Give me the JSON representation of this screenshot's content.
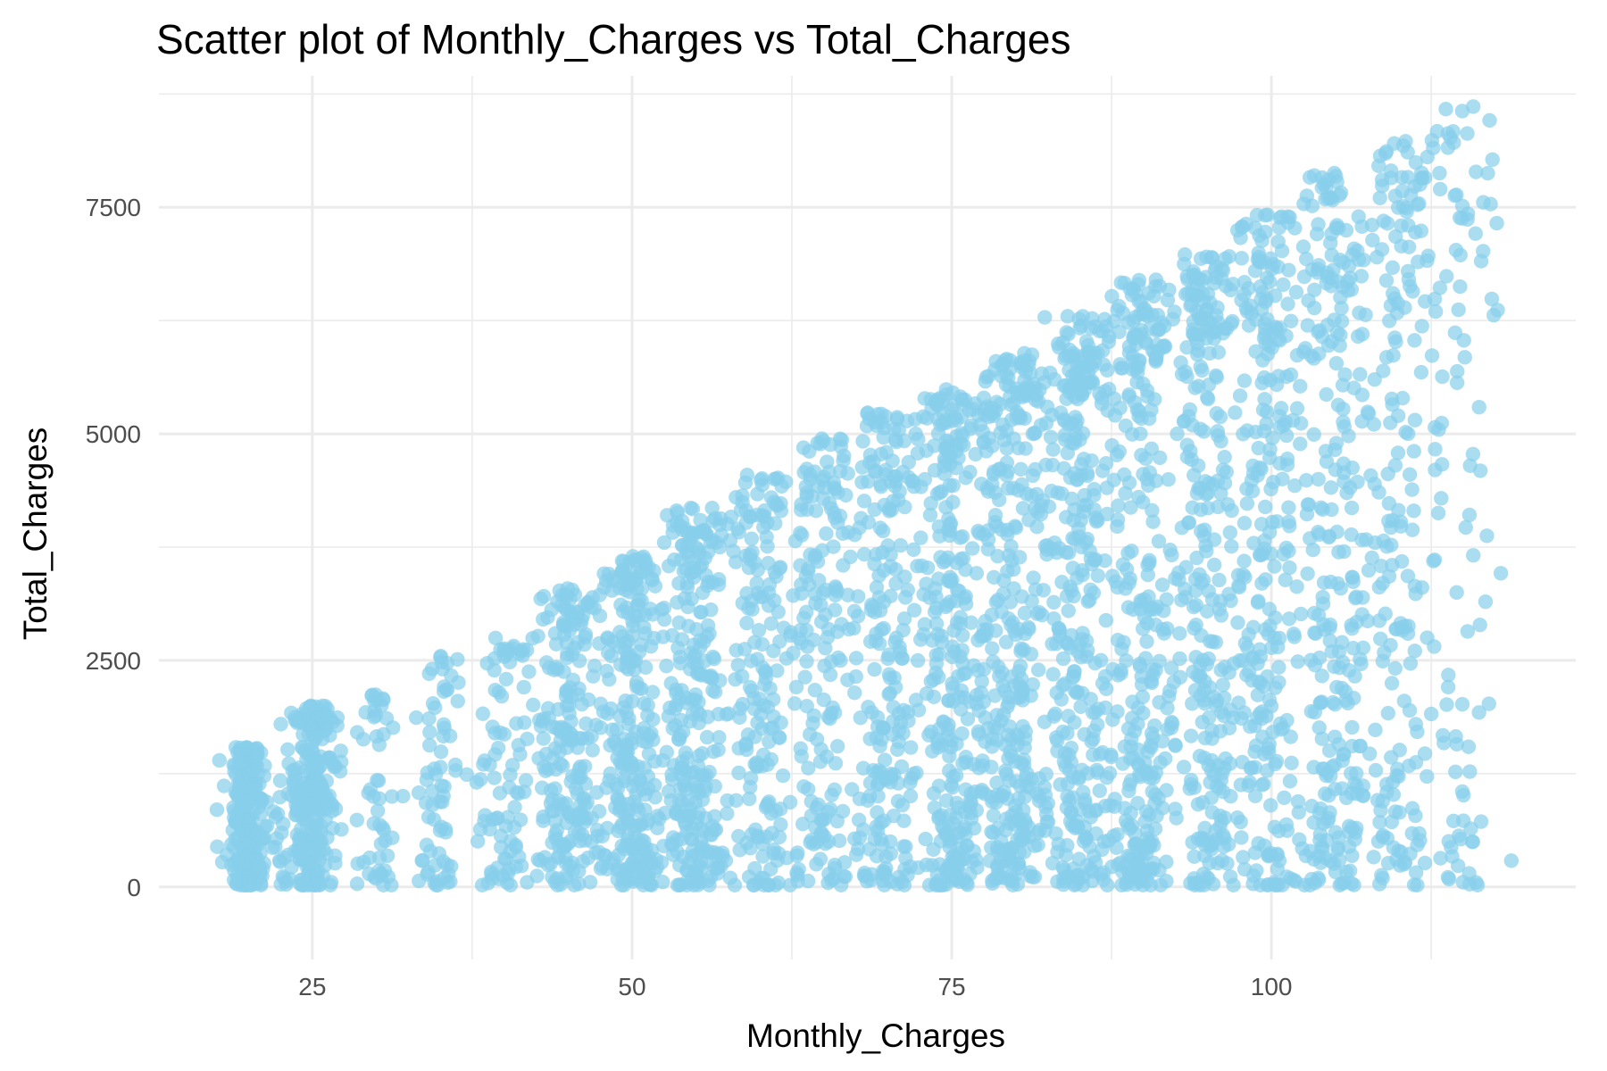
{
  "chart_data": {
    "type": "scatter",
    "title": "Scatter plot of Monthly_Charges vs Total_Charges",
    "xlabel": "Monthly_Charges",
    "ylabel": "Total_Charges",
    "xlim": [
      13.0,
      123.8
    ],
    "ylim": [
      -800,
      8950
    ],
    "x_ticks": [
      25,
      50,
      75,
      100
    ],
    "x_tick_labels": [
      "25",
      "50",
      "75",
      "100"
    ],
    "y_ticks": [
      0,
      2500,
      5000,
      7500
    ],
    "y_tick_labels": [
      "0",
      "2500",
      "5000",
      "7500"
    ],
    "grid": true,
    "legend": "none",
    "point_color": "#87CEEB",
    "point_alpha": 0.7,
    "clusters": [
      {
        "x": 20,
        "spread": 0.6,
        "ymax": 1550,
        "count": 260
      },
      {
        "x": 25,
        "spread": 0.8,
        "ymax": 2000,
        "count": 240
      },
      {
        "x": 30,
        "spread": 0.7,
        "ymax": 2150,
        "count": 45
      },
      {
        "x": 35,
        "spread": 0.7,
        "ymax": 2550,
        "count": 60
      },
      {
        "x": 40,
        "spread": 1.2,
        "ymax": 2850,
        "count": 80
      },
      {
        "x": 45,
        "spread": 1.0,
        "ymax": 3300,
        "count": 180
      },
      {
        "x": 50,
        "spread": 1.1,
        "ymax": 3650,
        "count": 230
      },
      {
        "x": 55,
        "spread": 1.1,
        "ymax": 4200,
        "count": 230
      },
      {
        "x": 60,
        "spread": 1.2,
        "ymax": 4550,
        "count": 160
      },
      {
        "x": 65,
        "spread": 1.2,
        "ymax": 4950,
        "count": 150
      },
      {
        "x": 70,
        "spread": 1.2,
        "ymax": 5250,
        "count": 190
      },
      {
        "x": 75,
        "spread": 1.2,
        "ymax": 5500,
        "count": 260
      },
      {
        "x": 80,
        "spread": 1.2,
        "ymax": 5900,
        "count": 300
      },
      {
        "x": 85,
        "spread": 1.2,
        "ymax": 6300,
        "count": 280
      },
      {
        "x": 90,
        "spread": 1.2,
        "ymax": 6700,
        "count": 260
      },
      {
        "x": 95,
        "spread": 1.2,
        "ymax": 7000,
        "count": 260
      },
      {
        "x": 100,
        "spread": 1.2,
        "ymax": 7450,
        "count": 230
      },
      {
        "x": 105,
        "spread": 1.2,
        "ymax": 7900,
        "count": 230
      },
      {
        "x": 110,
        "spread": 1.3,
        "ymax": 8250,
        "count": 170
      },
      {
        "x": 115,
        "spread": 1.4,
        "ymax": 8650,
        "count": 90
      }
    ]
  }
}
